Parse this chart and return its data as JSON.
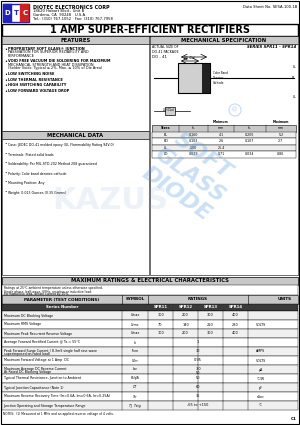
{
  "company": "DIOTEC ELECTRONICS CORP",
  "address1": "18620 Hobart Blvd., Unit B",
  "address2": "Gardena, CA  90248   U.S.A.",
  "phone": "Tel.: (310) 767-1052   Fax: (310) 767-7958",
  "datasheet_no": "Data Sheet No. SESA-100-1B",
  "title": "1 AMP SUPER-EFFICIENT RECTIFIERS",
  "features_title": "FEATURES",
  "features": [
    "PROPRIETARY SOFT GLASS® JUNCTION\nPASSIVATION FOR SUPERIOR RELIABILITY AND\nPERFORMANCE",
    "VOID FREE VACUUM DIE SOLDERING FOR MAXIMUM\nMECHANICAL STRENGTH AND HEAT DISSIPATION\n(Solder Voids: Typical ≤ 2%, Max. ≤ 10% of Die Area)",
    "LOW SWITCHING NOISE",
    "LOW THERMAL RESISTANCE",
    "HIGH SWITCHING CAPABILITY",
    "LOW FORWARD VOLTAGE DROP"
  ],
  "mech_data_title": "MECHANICAL DATA",
  "mech_data": [
    "Case: JEDEC DO-41 molded epoxy (UL Flammability Rating 94V-0)",
    "Terminals: Plated solid leads",
    "Solderability: Per MIL-STD-202 Method 208 guaranteed",
    "Polarity: Color band denotes cathode",
    "Mounting Position: Any",
    "Weight: 0.013 Ounces (0.35 Grams)"
  ],
  "mech_spec_title": "MECHANICAL SPECIFICATION",
  "series_label": "SERIES SPR11 - SPR14",
  "do41_label": "DO - 41",
  "dim_rows": [
    [
      "BL",
      "0.160",
      "4.1",
      "0.205",
      "5.2"
    ],
    [
      "BD",
      "0.103",
      "2.6",
      "0.107",
      "2.7"
    ],
    [
      "LL",
      "1.00",
      "25.4",
      "",
      ""
    ],
    [
      "LD",
      "0.029",
      "0.71",
      "0.034",
      "0.86"
    ]
  ],
  "ratings_title": "MAXIMUM RATINGS & ELECTRICAL CHARACTERISTICS",
  "ratings_note1": "Ratings at 25°C ambient temperature unless otherwise specified.",
  "ratings_note2": "Single phase, half wave, 60Hz, resistive or inductive load.",
  "ratings_note3": "For capacitive load, derate current by 20%.",
  "param_header": "PARAMETER (TEST CONDITIONS)",
  "symbol_header": "SYMBOL",
  "ratings_header": "RATINGS",
  "units_header": "UNITS",
  "series_numbers": [
    "SPR11",
    "SPR12",
    "SPR13",
    "SPR14"
  ],
  "table_rows": [
    {
      "param": "Maximum DC Blocking Voltage",
      "symbol": "Vmax",
      "ratings": [
        "100",
        "200",
        "300",
        "400"
      ],
      "units": ""
    },
    {
      "param": "Maximum RMS Voltage",
      "symbol": "Vrms",
      "ratings": [
        "70",
        "140",
        "210",
        "280"
      ],
      "units": "VOLTS"
    },
    {
      "param": "Maximum Peak Recurrent Reverse Voltage",
      "symbol": "Vmax",
      "ratings": [
        "100",
        "200",
        "300",
        "400"
      ],
      "units": ""
    },
    {
      "param": "Average Forward Rectified Current @ Ta = 55°C",
      "symbol": "Io",
      "ratings": [
        "",
        "1",
        "",
        ""
      ],
      "units": ""
    },
    {
      "param": "Peak Forward Surge Current ( 8.3mS single half sine wave\nsuperimposed on rated load)",
      "symbol": "Ifsm",
      "ratings": [
        "",
        "30",
        "",
        ""
      ],
      "units": "AMPS"
    },
    {
      "param": "Maximum Forward Voltage at 1 Amp  DC",
      "symbol": "Vfm",
      "ratings": [
        "",
        "0.95",
        "",
        ""
      ],
      "units": "VOLTS"
    },
    {
      "param": "Maximum Average DC Reverse Current\nAt Rated DC Blocking Voltage",
      "symbol": "Iav",
      "ratings": [
        "",
        "3.0\n50",
        "",
        ""
      ],
      "units": "μA"
    },
    {
      "param": "Typical Thermal Resistance, Junction to Ambient",
      "symbol": "RthJA",
      "ratings": [
        "",
        "50",
        "",
        ""
      ],
      "units": "°C/W"
    },
    {
      "param": "Typical Junction Capacitance (Note 1)",
      "symbol": "CT",
      "ratings": [
        "",
        "60",
        "",
        ""
      ],
      "units": "pF"
    },
    {
      "param": "Maximum Reverse Recovery Time (Irr=0.6A, Im=0.6A, Irr=0.25A)",
      "symbol": "Trr",
      "ratings": [
        "",
        "35",
        "",
        ""
      ],
      "units": "nSec"
    },
    {
      "param": "Junction Operating and Storage Temperature Range",
      "symbol": "TJ  Tstg",
      "ratings": [
        "",
        "-65 to +150",
        "",
        ""
      ],
      "units": "°C"
    }
  ],
  "notes": "NOTES:  (1) Measured at 1 MHz and an applied reverse voltage of 4 volts.",
  "page_label": "C1",
  "bg_color": "#ffffff",
  "gray_header": "#c8c8c8",
  "dark_row_color": "#3a3a3a",
  "watermark_color": "#5599dd"
}
